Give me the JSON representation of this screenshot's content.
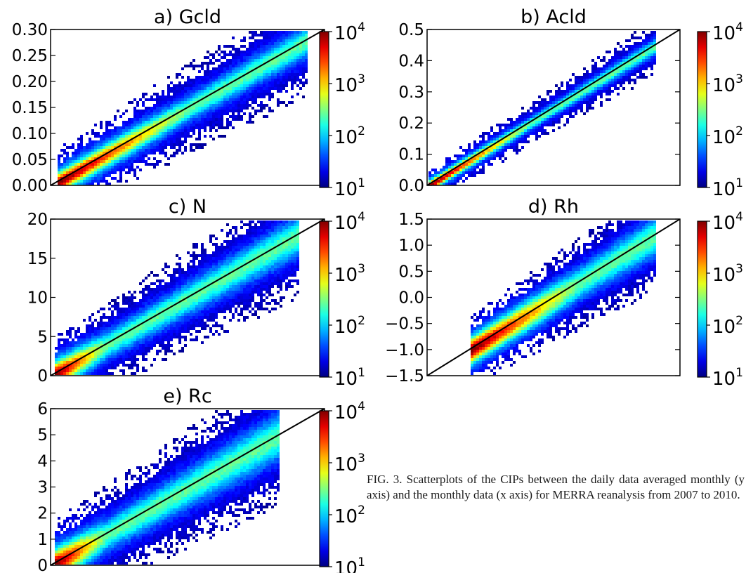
{
  "figure": {
    "caption_label": "FIG. 3.",
    "caption_text": "Scatterplots of the CIPs between the daily data averaged monthly (y axis) and the monthly data (x axis) for MERRA reanalysis from 2007 to 2010.",
    "colorbar": {
      "scale": "log",
      "colormap": "jet",
      "tick_labels": [
        "10^4",
        "10^3",
        "10^2",
        "10^1"
      ]
    }
  },
  "chart_data": [
    {
      "type": "heatmap",
      "title": "a) Gcld",
      "xlabel": "",
      "ylabel": "",
      "ylim": [
        0,
        0.3
      ],
      "yticks": [
        "0.00",
        "0.05",
        "0.10",
        "0.15",
        "0.20",
        "0.25",
        "0.30"
      ],
      "reference_line": "1:1",
      "density": {
        "cx": [
          0.005,
          0.28
        ],
        "core_spread": 0.012,
        "outer_spread": 0.035,
        "hot_end": 0.15
      }
    },
    {
      "type": "heatmap",
      "title": "b) Acld",
      "xlabel": "",
      "ylabel": "",
      "ylim": [
        0,
        0.5
      ],
      "yticks": [
        "0.0",
        "0.1",
        "0.2",
        "0.3",
        "0.4",
        "0.5"
      ],
      "reference_line": "1:1",
      "density": {
        "cx": [
          0.0,
          0.45
        ],
        "core_spread": 0.01,
        "outer_spread": 0.03,
        "hot_end": 0.2
      }
    },
    {
      "type": "heatmap",
      "title": "c) N",
      "xlabel": "",
      "ylabel": "",
      "ylim": [
        0,
        20
      ],
      "yticks": [
        "0",
        "5",
        "10",
        "15",
        "20"
      ],
      "reference_line": "1:1",
      "density": {
        "cx": [
          0.2,
          18
        ],
        "core_spread": 1.0,
        "outer_spread": 2.6,
        "hot_end": 4
      }
    },
    {
      "type": "heatmap",
      "title": "d) Rh",
      "xlabel": "",
      "ylabel": "",
      "ylim": [
        -1.5,
        1.5
      ],
      "yticks": [
        "−1.5",
        "−1.0",
        "−0.5",
        "0.0",
        "0.5",
        "1.0",
        "1.5"
      ],
      "reference_line": "1:1",
      "density": {
        "cx": [
          -1.0,
          1.2
        ],
        "core_spread": 0.15,
        "outer_spread": 0.35,
        "hot_end": 0.3
      }
    },
    {
      "type": "heatmap",
      "title": "e) Rc",
      "xlabel": "",
      "ylabel": "",
      "ylim": [
        0,
        6
      ],
      "yticks": [
        "0",
        "1",
        "2",
        "3",
        "4",
        "5",
        "6"
      ],
      "reference_line": "1:1",
      "density": {
        "cx": [
          0.05,
          5.0
        ],
        "core_spread": 0.35,
        "outer_spread": 0.9,
        "hot_end": 1.2
      }
    }
  ]
}
